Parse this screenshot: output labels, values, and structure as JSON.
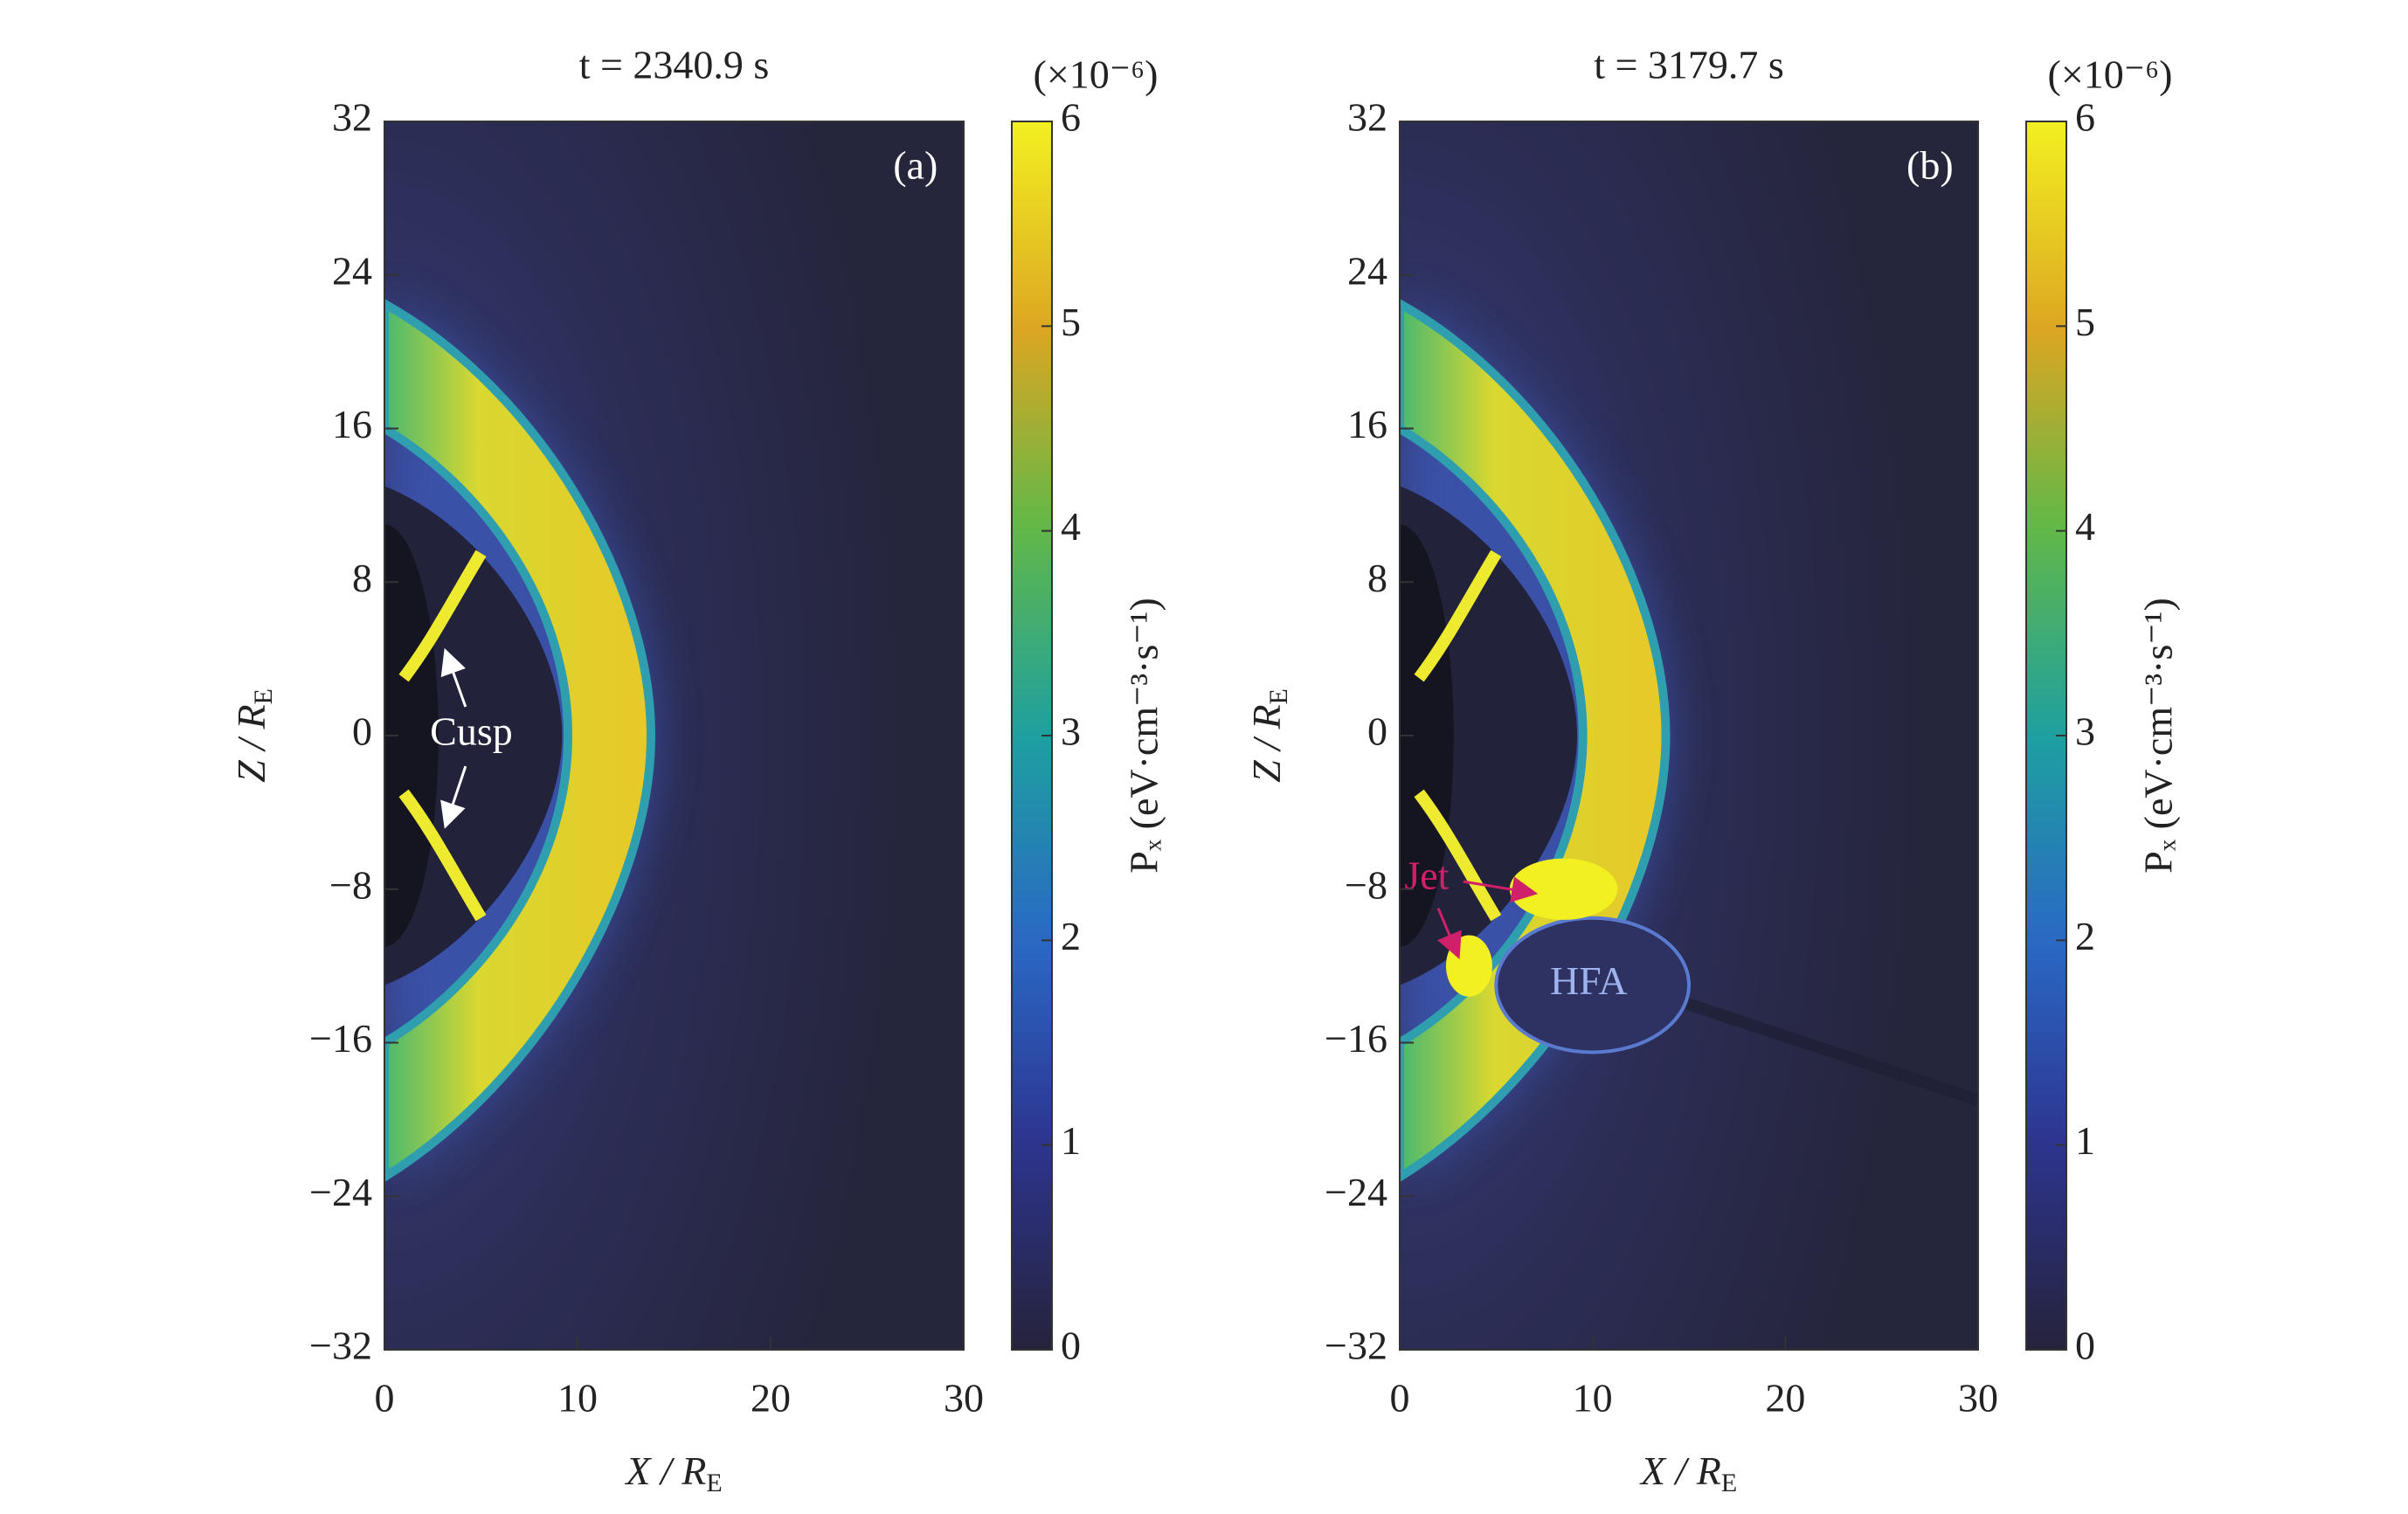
{
  "chart_data": [
    {
      "type": "heatmap",
      "title": "t = 2340.9 s",
      "panel_label": "(a)",
      "xlabel": [
        "X / R",
        "E"
      ],
      "ylabel": [
        "Z / R",
        "E"
      ],
      "xlim": [
        0,
        30
      ],
      "xticks": [
        0,
        10,
        20,
        30
      ],
      "ylim": [
        -32,
        32
      ],
      "yticks": [
        {
          "value": -32,
          "label": "−32"
        },
        {
          "value": -24,
          "label": "−24"
        },
        {
          "value": -16,
          "label": "−16"
        },
        {
          "value": -8,
          "label": "−8"
        },
        0,
        8,
        16,
        24,
        32
      ],
      "colorbar_label": "Pₓ (eV·cm⁻³·s⁻¹)",
      "colorbar_scale": "(×10⁻⁶)",
      "clim": [
        0,
        6
      ],
      "cticks": [
        0,
        1,
        2,
        3,
        4,
        5,
        6
      ],
      "annotations": [
        "Cusp"
      ]
    },
    {
      "type": "heatmap",
      "title": "t = 3179.7 s",
      "panel_label": "(b)",
      "xlabel": [
        "X / R",
        "E"
      ],
      "ylabel": [
        "Z / R",
        "E"
      ],
      "xlim": [
        0,
        30
      ],
      "xticks": [
        0,
        10,
        20,
        30
      ],
      "ylim": [
        -32,
        32
      ],
      "yticks": [
        {
          "value": -32,
          "label": "−32"
        },
        {
          "value": -24,
          "label": "−24"
        },
        {
          "value": -16,
          "label": "−16"
        },
        {
          "value": -8,
          "label": "−8"
        },
        0,
        8,
        16,
        24,
        32
      ],
      "colorbar_label": "Pₓ (eV·cm⁻³·s⁻¹)",
      "colorbar_scale": "(×10⁻⁶)",
      "clim": [
        0,
        6
      ],
      "cticks": [
        0,
        1,
        2,
        3,
        4,
        5,
        6
      ],
      "annotations": [
        "Jet",
        "HFA"
      ]
    }
  ]
}
